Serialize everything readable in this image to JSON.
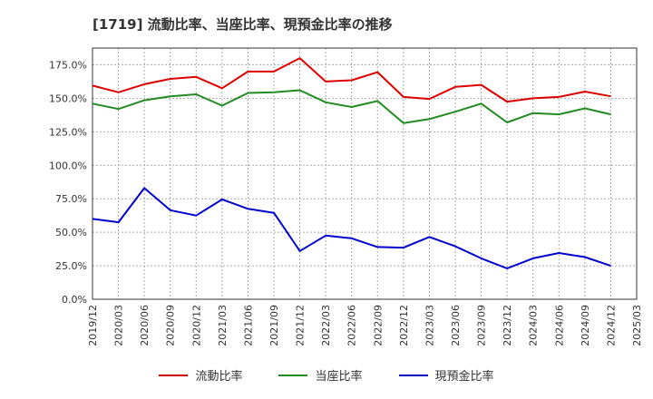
{
  "chart_data": {
    "type": "line",
    "title": "[1719]  流動比率、当座比率、現預金比率の推移",
    "xlabel": "",
    "ylabel": "",
    "ylim": [
      0,
      187.5
    ],
    "yticks": [
      0,
      25,
      50,
      75,
      100,
      125,
      150,
      175
    ],
    "ytick_labels": [
      "0.0%",
      "25.0%",
      "50.0%",
      "75.0%",
      "100.0%",
      "125.0%",
      "150.0%",
      "175.0%"
    ],
    "xtick_labels": [
      "2019/12",
      "2020/03",
      "2020/06",
      "2020/09",
      "2020/12",
      "2021/03",
      "2021/06",
      "2021/09",
      "2021/12",
      "2022/03",
      "2022/06",
      "2022/09",
      "2022/12",
      "2023/03",
      "2023/06",
      "2023/09",
      "2023/12",
      "2024/03",
      "2024/06",
      "2024/09",
      "2024/12",
      "2025/03"
    ],
    "x": [
      "2019/12",
      "2020/03",
      "2020/06",
      "2020/09",
      "2020/12",
      "2021/03",
      "2021/06",
      "2021/09",
      "2021/12",
      "2022/03",
      "2022/06",
      "2022/09",
      "2022/12",
      "2023/03",
      "2023/06",
      "2023/09",
      "2023/12",
      "2024/03",
      "2024/06",
      "2024/09",
      "2024/12"
    ],
    "grid": true,
    "series": [
      {
        "name": "流動比率",
        "color": "#dd0000",
        "values": [
          159.5,
          154.5,
          160.5,
          164.5,
          166.0,
          157.5,
          170.0,
          170.0,
          180.0,
          162.5,
          163.5,
          169.5,
          151.0,
          149.5,
          158.5,
          160.0,
          147.5,
          150.0,
          151.0,
          155.0,
          151.5
        ]
      },
      {
        "name": "当座比率",
        "color": "#228b22",
        "values": [
          146.0,
          142.0,
          148.5,
          151.5,
          153.0,
          144.5,
          154.0,
          154.5,
          156.0,
          147.0,
          143.5,
          148.0,
          131.5,
          134.5,
          140.0,
          146.0,
          132.0,
          139.0,
          138.0,
          142.5,
          138.0
        ]
      },
      {
        "name": "現預金比率",
        "color": "#0000cc",
        "values": [
          60.0,
          57.5,
          83.0,
          66.5,
          62.5,
          74.5,
          67.5,
          64.5,
          36.0,
          47.5,
          45.5,
          39.0,
          38.5,
          46.5,
          39.5,
          30.5,
          23.0,
          30.5,
          34.5,
          31.5,
          25.0
        ]
      }
    ]
  }
}
